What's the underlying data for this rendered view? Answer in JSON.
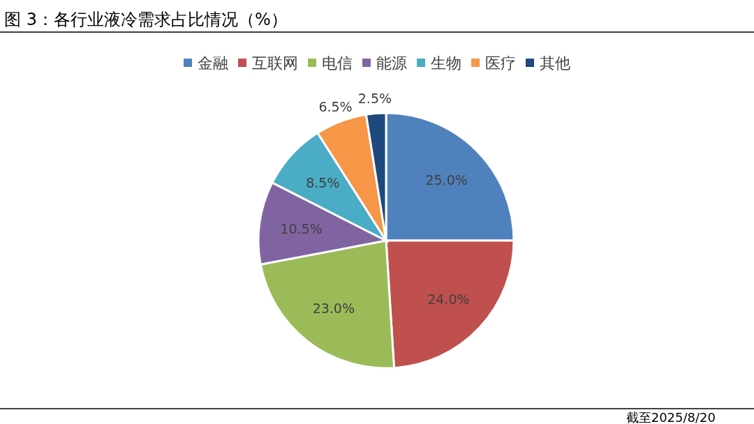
{
  "chart_data": {
    "type": "pie",
    "title": "图 3：各行业液冷需求占比情况（%）",
    "categories": [
      "金融",
      "互联网",
      "电信",
      "能源",
      "生物",
      "医疗",
      "其他"
    ],
    "values": [
      25.0,
      24.0,
      23.0,
      10.5,
      8.5,
      6.5,
      2.5
    ],
    "colors": [
      "#4f81bd",
      "#c0504d",
      "#9bbb59",
      "#8064a2",
      "#4bacc6",
      "#f79646",
      "#1f497d"
    ],
    "value_labels": [
      "25.0%",
      "24.0%",
      "23.0%",
      "10.5%",
      "8.5%",
      "6.5%",
      "2.5%"
    ],
    "legend": "top",
    "annotations": [
      "截至2025/8/20"
    ]
  }
}
